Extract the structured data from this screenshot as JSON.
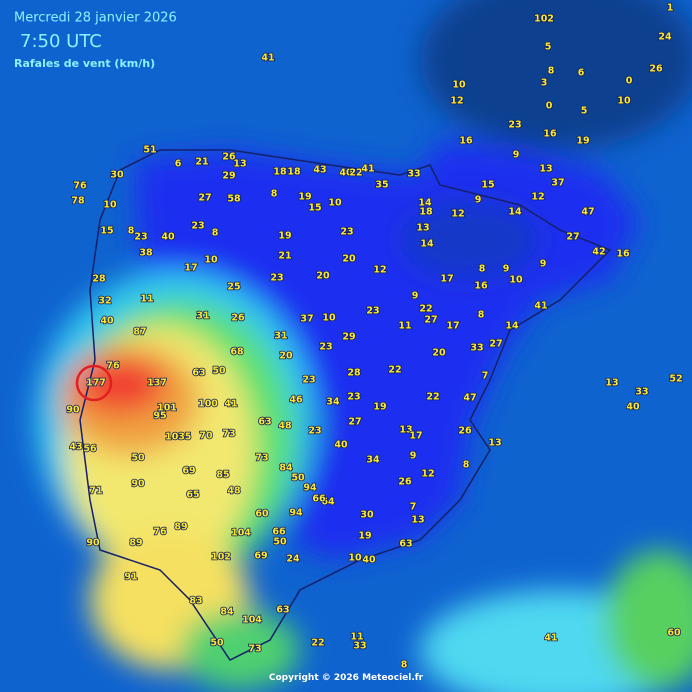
{
  "header": {
    "date": "Mercredi 28 janvier 2026",
    "time": "7:50 UTC",
    "variable": "Rafales de vent (km/h)"
  },
  "footer": "Copyright © 2026 Meteociel.fr",
  "stations": [
    51,
    30,
    76,
    78,
    10,
    15,
    8,
    23,
    40,
    38,
    28,
    32,
    11,
    40,
    87,
    76,
    177,
    137,
    90,
    101,
    95,
    103,
    5,
    70,
    73,
    100,
    41,
    63,
    50,
    68,
    43,
    56,
    50,
    71,
    90,
    69,
    85,
    73,
    84,
    50,
    94,
    64,
    66,
    65,
    48,
    60,
    94,
    90,
    89,
    76,
    89,
    104,
    66,
    50,
    24,
    69,
    102,
    91,
    83,
    84,
    104,
    63,
    50,
    73,
    22,
    11,
    33,
    8,
    41,
    60,
    63,
    10,
    40,
    19,
    30,
    34,
    40,
    27,
    23,
    48,
    63,
    13,
    17,
    26,
    13,
    9,
    12,
    8,
    26,
    7,
    13,
    22,
    47,
    19,
    34,
    23,
    46,
    23,
    28,
    22,
    20,
    7,
    33,
    27,
    11,
    27,
    17,
    14,
    41,
    8,
    22,
    9,
    23,
    37,
    10,
    29,
    23,
    20,
    31,
    26,
    31,
    25,
    20,
    23,
    12,
    21,
    20,
    19,
    23,
    8,
    23,
    17,
    10,
    27,
    58,
    8,
    19,
    15,
    10,
    29,
    18,
    18,
    43,
    40,
    22,
    41,
    35,
    33,
    6,
    21,
    26,
    13,
    14,
    18,
    13,
    14,
    17,
    8,
    9,
    16,
    10,
    9,
    27,
    42,
    16,
    47,
    12,
    14,
    12,
    9,
    15,
    16,
    23,
    9,
    13,
    37,
    19,
    16,
    5,
    0,
    10,
    12,
    5,
    8,
    3,
    6,
    0,
    10,
    26,
    33,
    52,
    40,
    13,
    41,
    1,
    102,
    24
  ]
}
